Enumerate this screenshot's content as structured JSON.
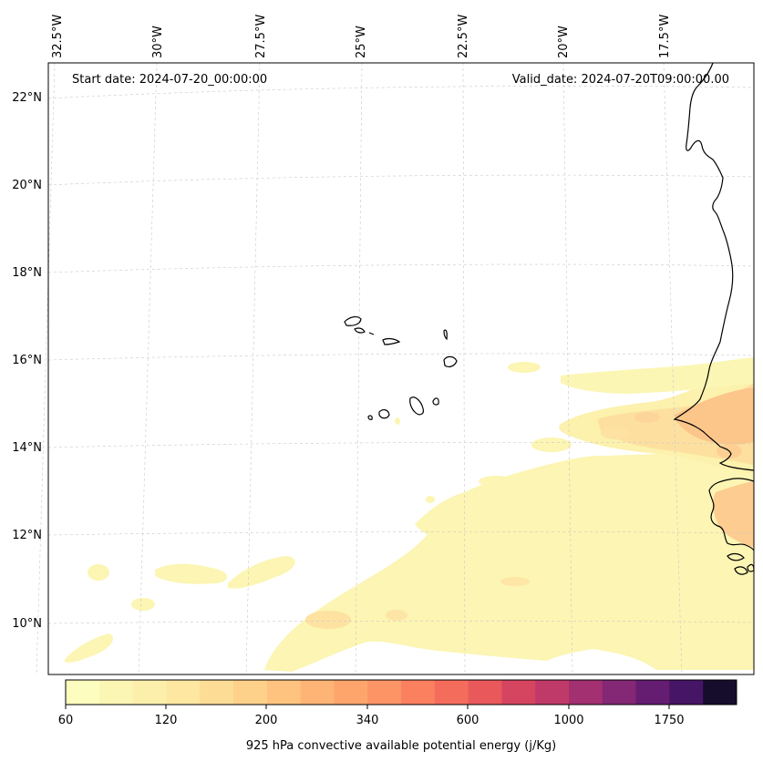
{
  "header": {
    "start_date": "Start date: 2024-07-20_00:00:00",
    "valid_date": "Valid_date: 2024-07-20T09:00:00.00"
  },
  "longitude_labels": [
    "32.5°W",
    "30°W",
    "27.5°W",
    "25°W",
    "22.5°W",
    "20°W",
    "17.5°W"
  ],
  "latitude_labels": [
    "22°N",
    "20°N",
    "18°N",
    "16°N",
    "14°N",
    "12°N",
    "10°N"
  ],
  "colorbar": {
    "tick_labels": [
      "60",
      "120",
      "200",
      "340",
      "600",
      "1000",
      "1750"
    ],
    "label": "925 hPa convective available potential energy (j/Kg)",
    "colors": [
      "#fcfdbf",
      "#fcf6b4",
      "#fcefab",
      "#fde7a1",
      "#fddd96",
      "#fed18a",
      "#fec37f",
      "#feb475",
      "#fea56c",
      "#fd9465",
      "#fa8060",
      "#f46c5c",
      "#e9595c",
      "#d64560",
      "#c03a69",
      "#a33070",
      "#842774",
      "#651d72",
      "#461566",
      "#160c2c"
    ]
  }
}
